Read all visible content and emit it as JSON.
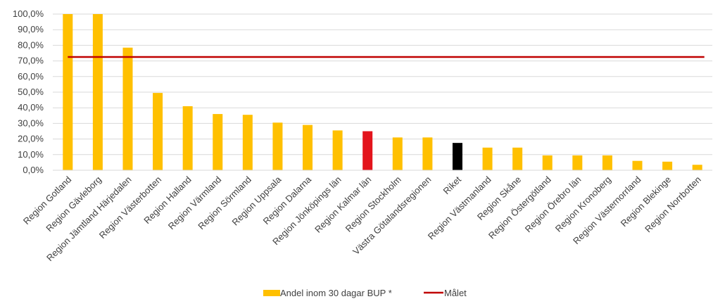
{
  "chart_data": {
    "type": "bar",
    "categories": [
      "Region Gotland",
      "Region Gävleborg",
      "Region Jämtland Härjedalen",
      "Region Västerbotten",
      "Region Halland",
      "Region Värmland",
      "Region Sörmland",
      "Region Uppsala",
      "Region Dalarna",
      "Region Jönköpings län",
      "Region Kalmar län",
      "Region Stockholm",
      "Västra Götalandsregionen",
      "Riket",
      "Region Västmanland",
      "Region Skåne",
      "Region Östergötland",
      "Region Örebro län",
      "Region Kronoberg",
      "Region Västernorrland",
      "Region Blekinge",
      "Region Norrbotten"
    ],
    "series": [
      {
        "name": "Andel inom 30 dagar BUP *",
        "values": [
          100,
          100,
          78.5,
          49.5,
          41,
          36,
          35.5,
          30.5,
          29,
          25.5,
          25,
          21,
          21,
          17.5,
          14.5,
          14.5,
          9.5,
          9.5,
          9.5,
          6,
          5.5,
          3.5
        ],
        "colors": [
          "#FFC000",
          "#FFC000",
          "#FFC000",
          "#FFC000",
          "#FFC000",
          "#FFC000",
          "#FFC000",
          "#FFC000",
          "#FFC000",
          "#FFC000",
          "#E3141C",
          "#FFC000",
          "#FFC000",
          "#000000",
          "#FFC000",
          "#FFC000",
          "#FFC000",
          "#FFC000",
          "#FFC000",
          "#FFC000",
          "#FFC000",
          "#FFC000"
        ]
      },
      {
        "name": "Målet",
        "type": "line",
        "value": 72.5,
        "color": "#C00000"
      }
    ],
    "y_ticks": [
      "0,0%",
      "10,0%",
      "20,0%",
      "30,0%",
      "40,0%",
      "50,0%",
      "60,0%",
      "70,0%",
      "80,0%",
      "90,0%",
      "100,0%"
    ],
    "ylim": [
      0,
      100
    ],
    "grid": true,
    "legend": "bottom-center",
    "title": "",
    "xlabel": "",
    "ylabel": ""
  },
  "colors": {
    "bar_default": "#FFC000",
    "highlight": "#E3141C",
    "national": "#000000",
    "target": "#C00000",
    "gridline": "#D9D9D9",
    "axis_text": "#404040"
  }
}
